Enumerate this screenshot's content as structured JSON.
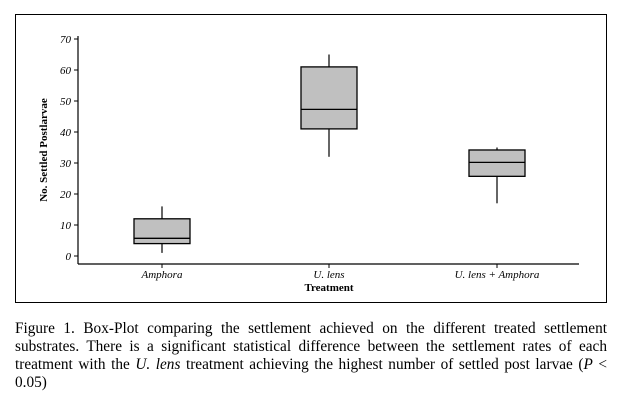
{
  "chart_data": {
    "type": "box",
    "title": "",
    "xlabel": "Treatment",
    "ylabel": "No. Settled Postlarvae",
    "ylim": [
      0,
      70
    ],
    "yticks": [
      0,
      10,
      20,
      30,
      40,
      50,
      60,
      70
    ],
    "grid": false,
    "box_color": "#c0c0c0",
    "categories": [
      "Amphora",
      "U. lens",
      "U. lens + Amphora"
    ],
    "boxes": [
      {
        "name": "Amphora",
        "whisker_low": 1,
        "q1": 4,
        "median": 5.7,
        "q3": 12,
        "whisker_high": 16
      },
      {
        "name": "U. lens",
        "whisker_low": 32,
        "q1": 41,
        "median": 47.3,
        "q3": 61,
        "whisker_high": 65
      },
      {
        "name": "U. lens + Amphora",
        "whisker_low": 17,
        "q1": 25.7,
        "median": 30.2,
        "q3": 34.2,
        "whisker_high": 35
      }
    ]
  },
  "caption": {
    "part1": "Figure 1. Box-Plot comparing the settlement achieved on the different treated settlement substrates. There is a significant statistical difference between the settlement rates of each treatment with the ",
    "italic": "U. lens",
    "part2": " treatment achieving the highest number of settled post larvae (",
    "p_symbol": "P",
    "part3": " < 0.05)"
  }
}
